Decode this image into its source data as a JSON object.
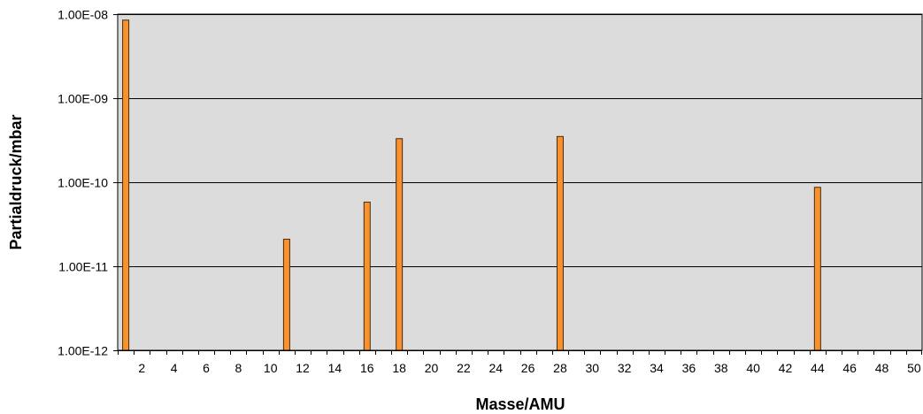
{
  "chart_data": {
    "type": "bar",
    "xlabel": "Masse/AMU",
    "ylabel": "Partialdruck/mbar",
    "y_scale": "log",
    "ylim": [
      1e-12,
      1e-08
    ],
    "y_tick_values": [
      1e-12,
      1e-11,
      1e-10,
      1e-09,
      1e-08
    ],
    "y_tick_labels": [
      "1.00E-12",
      "1.00E-11",
      "1.00E-10",
      "1.00E-09",
      "1.00E-08"
    ],
    "x_categories": [
      1,
      2,
      3,
      4,
      5,
      6,
      7,
      8,
      9,
      10,
      11,
      12,
      13,
      14,
      15,
      16,
      17,
      18,
      19,
      20,
      21,
      22,
      23,
      24,
      25,
      26,
      27,
      28,
      29,
      30,
      31,
      32,
      33,
      34,
      35,
      36,
      37,
      38,
      39,
      40,
      41,
      42,
      43,
      44,
      45,
      46,
      47,
      48,
      49,
      50
    ],
    "x_tick_labels": [
      "2",
      "4",
      "6",
      "8",
      "10",
      "12",
      "14",
      "16",
      "18",
      "20",
      "22",
      "24",
      "26",
      "28",
      "30",
      "32",
      "34",
      "36",
      "38",
      "40",
      "42",
      "44",
      "46",
      "48",
      "50"
    ],
    "grid": true,
    "legend": "none",
    "points": [
      {
        "x": 1,
        "y": 8.5e-09
      },
      {
        "x": 11,
        "y": 2.1e-11
      },
      {
        "x": 16,
        "y": 5.8e-11
      },
      {
        "x": 18,
        "y": 3.3e-10
      },
      {
        "x": 28,
        "y": 3.5e-10
      },
      {
        "x": 44,
        "y": 8.7e-11
      }
    ],
    "colors": {
      "bar_fill": "#f7922e",
      "bar_stroke": "#4a2a0a",
      "plot_background": "#dcdcdc",
      "gridline": "#000000"
    }
  }
}
